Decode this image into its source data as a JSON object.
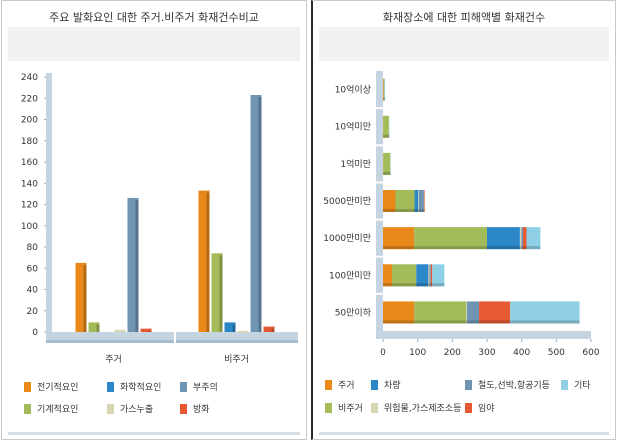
{
  "chart_data": [
    {
      "type": "bar",
      "title": "주요 발화요인 대한 주거.비주거 화재건수비교",
      "categories": [
        "주거",
        "비주거"
      ],
      "ylim": [
        0,
        240
      ],
      "yticks": [
        0,
        20,
        40,
        60,
        80,
        100,
        120,
        140,
        160,
        180,
        200,
        220,
        240
      ],
      "series": [
        {
          "name": "전기적요인",
          "values": [
            65,
            133
          ],
          "color": "#e8891a"
        },
        {
          "name": "기계적요인",
          "values": [
            9,
            74
          ],
          "color": "#a4bb5a"
        },
        {
          "name": "화학적요인",
          "values": [
            0,
            9
          ],
          "color": "#2b87c8"
        },
        {
          "name": "가스누출",
          "values": [
            2,
            1
          ],
          "color": "#d9d6b4"
        },
        {
          "name": "부주의",
          "values": [
            126,
            223
          ],
          "color": "#6f95b4"
        },
        {
          "name": "방화",
          "values": [
            3,
            5
          ],
          "color": "#e55a32"
        }
      ],
      "grid": false,
      "legend": "bottom"
    },
    {
      "type": "bar",
      "orientation": "horizontal",
      "stacked": true,
      "title": "화재장소에 대한 피해액별 화재건수",
      "categories": [
        "10억이상",
        "10억미만",
        "1억미만",
        "5000만미만",
        "1000만미만",
        "100만미만",
        "50만이하"
      ],
      "xlim": [
        0,
        600
      ],
      "xticks": [
        0,
        100,
        200,
        300,
        400,
        500,
        600
      ],
      "series": [
        {
          "name": "주거",
          "values": [
            2,
            1,
            1,
            36,
            90,
            26,
            90
          ],
          "color": "#e8891a"
        },
        {
          "name": "비주거",
          "values": [
            2,
            16,
            20,
            55,
            210,
            70,
            150
          ],
          "color": "#a4bb5a"
        },
        {
          "name": "차량",
          "values": [
            0,
            0,
            0,
            10,
            95,
            35,
            0
          ],
          "color": "#2b87c8"
        },
        {
          "name": "위험물,가스제조소등",
          "values": [
            0,
            0,
            0,
            2,
            4,
            3,
            2
          ],
          "color": "#d9d6b4"
        },
        {
          "name": "철도,선박,항공기등",
          "values": [
            0,
            0,
            0,
            15,
            5,
            4,
            35
          ],
          "color": "#6f95b4"
        },
        {
          "name": "임야",
          "values": [
            0,
            0,
            0,
            2,
            10,
            4,
            90
          ],
          "color": "#e55a32"
        },
        {
          "name": "기타",
          "values": [
            2,
            1,
            1,
            0,
            40,
            35,
            200
          ],
          "color": "#8fd0e6"
        }
      ],
      "grid": false,
      "legend": "bottom"
    }
  ]
}
